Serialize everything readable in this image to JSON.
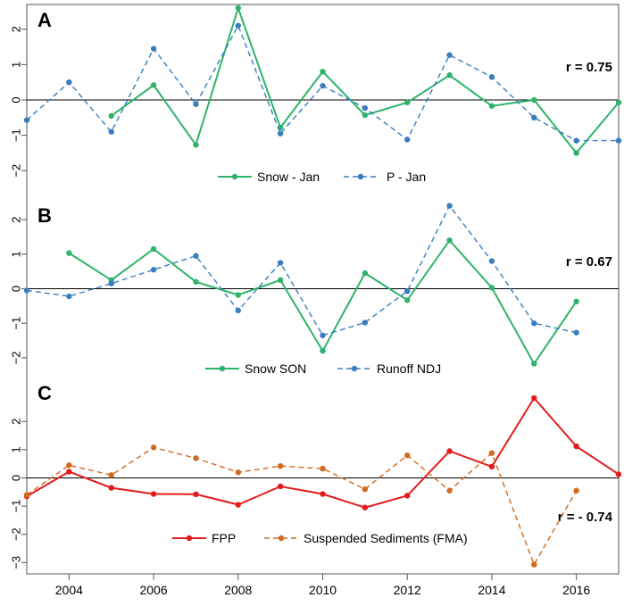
{
  "chart_data": [
    {
      "type": "line",
      "panel_label": "A",
      "annotation": "r = 0.75",
      "ylim": [
        -2.7,
        2.7
      ],
      "yticks": [
        -2,
        -1,
        0,
        1,
        2
      ],
      "ytick_labels": [
        "−2",
        "−1",
        "0",
        "1",
        "2"
      ],
      "series": [
        {
          "name": "Snow - Jan",
          "color": "#2db36b",
          "dash": false,
          "x": [
            2005,
            2006,
            2007,
            2008,
            2009,
            2010,
            2011,
            2012,
            2013,
            2014,
            2015,
            2016,
            2017
          ],
          "values": [
            -0.45,
            0.42,
            -1.27,
            2.6,
            -0.78,
            0.8,
            -0.43,
            -0.07,
            0.7,
            -0.17,
            0.0,
            -1.5,
            -0.07
          ]
        },
        {
          "name": "P - Jan",
          "color": "#3a7dbf",
          "dash": true,
          "x": [
            2003,
            2004,
            2005,
            2006,
            2007,
            2008,
            2009,
            2010,
            2011,
            2012,
            2013,
            2014,
            2015,
            2016,
            2017
          ],
          "values": [
            -0.57,
            0.5,
            -0.9,
            1.45,
            -0.12,
            2.1,
            -0.95,
            0.4,
            -0.23,
            -1.12,
            1.27,
            0.65,
            -0.5,
            -1.15,
            -1.15
          ]
        }
      ]
    },
    {
      "type": "line",
      "panel_label": "B",
      "annotation": "r = 0.67",
      "ylim": [
        -2.7,
        2.7
      ],
      "yticks": [
        -2,
        -1,
        0,
        1,
        2
      ],
      "ytick_labels": [
        "−2",
        "−1",
        "0",
        "1",
        "2"
      ],
      "series": [
        {
          "name": "Snow SON",
          "color": "#2db36b",
          "dash": false,
          "x": [
            2004,
            2005,
            2006,
            2007,
            2008,
            2009,
            2010,
            2011,
            2012,
            2013,
            2014,
            2015,
            2016
          ],
          "values": [
            1.03,
            0.25,
            1.15,
            0.2,
            -0.18,
            0.25,
            -1.8,
            0.45,
            -0.33,
            1.4,
            0.03,
            -2.17,
            -0.37
          ]
        },
        {
          "name": "Runoff NDJ",
          "color": "#3a7dbf",
          "dash": true,
          "x": [
            2003,
            2004,
            2005,
            2006,
            2007,
            2008,
            2009,
            2010,
            2011,
            2012,
            2013,
            2014,
            2015,
            2016
          ],
          "values": [
            -0.05,
            -0.22,
            0.15,
            0.55,
            0.95,
            -0.63,
            0.75,
            -1.35,
            -0.98,
            -0.07,
            2.4,
            0.8,
            -1.0,
            -1.27
          ]
        }
      ]
    },
    {
      "type": "line",
      "panel_label": "C",
      "annotation": "r = - 0.74",
      "ylim": [
        -3.4,
        3.4
      ],
      "yticks": [
        -3,
        -2,
        -1,
        0,
        1,
        2
      ],
      "ytick_labels": [
        "−3",
        "−2",
        "−1",
        "0",
        "1",
        "2"
      ],
      "series": [
        {
          "name": "FPP",
          "color": "#e31a1c",
          "dash": false,
          "x": [
            2003,
            2004,
            2005,
            2006,
            2007,
            2008,
            2009,
            2010,
            2011,
            2012,
            2013,
            2014,
            2015,
            2016,
            2017
          ],
          "values": [
            -0.65,
            0.22,
            -0.35,
            -0.57,
            -0.58,
            -0.95,
            -0.3,
            -0.57,
            -1.05,
            -0.63,
            0.95,
            0.4,
            2.83,
            1.12,
            0.13
          ]
        },
        {
          "name": "Suspended Sediments (FMA)",
          "color": "#d2691e",
          "dash": true,
          "x": [
            2003,
            2004,
            2005,
            2006,
            2007,
            2008,
            2009,
            2010,
            2011,
            2012,
            2013,
            2014,
            2015,
            2016
          ],
          "values": [
            -0.6,
            0.45,
            0.1,
            1.08,
            0.7,
            0.2,
            0.42,
            0.33,
            -0.4,
            0.8,
            -0.45,
            0.88,
            -3.07,
            -0.45
          ]
        }
      ]
    }
  ],
  "x_axis": {
    "xlim": [
      2003,
      2017
    ],
    "ticks": [
      2004,
      2006,
      2008,
      2010,
      2012,
      2014,
      2016
    ],
    "tick_labels": [
      "2004",
      "2006",
      "2008",
      "2010",
      "2012",
      "2014",
      "2016"
    ]
  }
}
